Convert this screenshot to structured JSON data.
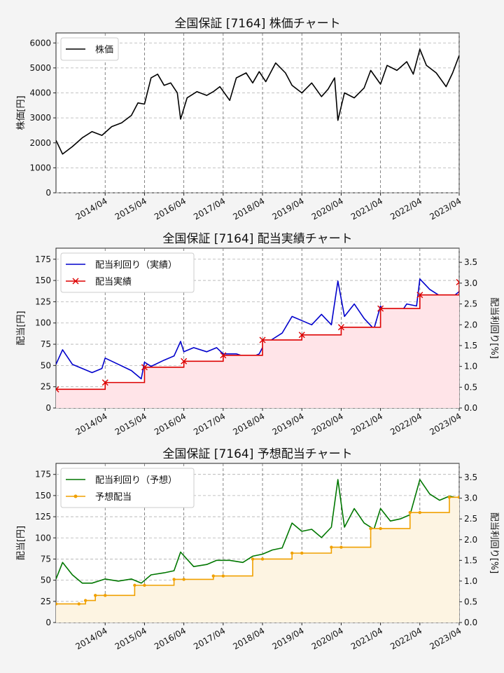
{
  "chart_data": [
    {
      "type": "line",
      "title": "全国保証 [7164]  株価チャート",
      "ylabel": "株価[円]",
      "ylim": [
        0,
        6400
      ],
      "yticks": [
        0,
        1000,
        2000,
        3000,
        4000,
        5000,
        6000
      ],
      "xlim": [
        "2013-01",
        "2023-04"
      ],
      "xticks": [
        "2014/04",
        "2015/04",
        "2016/04",
        "2017/04",
        "2018/04",
        "2019/04",
        "2020/04",
        "2021/04",
        "2022/04",
        "2023/04"
      ],
      "legend": {
        "position": "top-left",
        "entries": [
          "株価"
        ]
      },
      "grid": true,
      "series": [
        {
          "name": "株価",
          "color": "#000000",
          "x": [
            "2013-01",
            "2013-03",
            "2013-06",
            "2013-09",
            "2013-12",
            "2014-03",
            "2014-06",
            "2014-09",
            "2014-12",
            "2015-02",
            "2015-04",
            "2015-06",
            "2015-08",
            "2015-10",
            "2015-12",
            "2016-02",
            "2016-03",
            "2016-05",
            "2016-08",
            "2016-11",
            "2017-01",
            "2017-03",
            "2017-06",
            "2017-08",
            "2017-11",
            "2018-01",
            "2018-03",
            "2018-05",
            "2018-08",
            "2018-11",
            "2019-01",
            "2019-04",
            "2019-07",
            "2019-10",
            "2019-12",
            "2020-02",
            "2020-03",
            "2020-05",
            "2020-08",
            "2020-11",
            "2021-01",
            "2021-04",
            "2021-06",
            "2021-09",
            "2021-12",
            "2022-02",
            "2022-04",
            "2022-06",
            "2022-09",
            "2022-12",
            "2023-02",
            "2023-04"
          ],
          "y": [
            2100,
            1550,
            1850,
            2200,
            2450,
            2300,
            2650,
            2800,
            3100,
            3600,
            3550,
            4600,
            4750,
            4300,
            4400,
            4000,
            2950,
            3800,
            4050,
            3900,
            4050,
            4250,
            3700,
            4600,
            4800,
            4400,
            4850,
            4450,
            5200,
            4800,
            4300,
            4000,
            4400,
            3850,
            4150,
            4600,
            2900,
            4000,
            3800,
            4200,
            4900,
            4350,
            5100,
            4900,
            5250,
            4750,
            5750,
            5100,
            4800,
            4250,
            4800,
            5500
          ]
        }
      ]
    },
    {
      "type": "line",
      "title": "全国保証 [7164]  配当実績チャート",
      "ylabel": "配当[円]",
      "y2label": "配当利回り[%]",
      "ylim": [
        0,
        188
      ],
      "y2lim": [
        0,
        3.84
      ],
      "yticks": [
        0,
        25,
        50,
        75,
        100,
        125,
        150,
        175
      ],
      "y2ticks": [
        0.0,
        0.5,
        1.0,
        1.5,
        2.0,
        2.5,
        3.0,
        3.5
      ],
      "xlim": [
        "2013-01",
        "2023-04"
      ],
      "xticks": [
        "2014/04",
        "2015/04",
        "2016/04",
        "2017/04",
        "2018/04",
        "2019/04",
        "2020/04",
        "2021/04",
        "2022/04",
        "2023/04"
      ],
      "legend": {
        "position": "top-left",
        "entries": [
          "配当利回り（実績）",
          "配当実績"
        ]
      },
      "grid": true,
      "series": [
        {
          "name": "配当利回り（実績）",
          "axis": "right",
          "color": "#0000cc",
          "x": [
            "2013-01",
            "2013-03",
            "2013-06",
            "2013-09",
            "2013-12",
            "2014-03",
            "2014-04",
            "2014-08",
            "2014-12",
            "2015-03",
            "2015-04",
            "2015-06",
            "2015-10",
            "2016-01",
            "2016-03",
            "2016-04",
            "2016-07",
            "2016-11",
            "2017-02",
            "2017-04",
            "2017-08",
            "2017-12",
            "2018-03",
            "2018-04",
            "2018-06",
            "2018-10",
            "2019-01",
            "2019-04",
            "2019-07",
            "2019-10",
            "2020-01",
            "2020-03",
            "2020-05",
            "2020-08",
            "2020-11",
            "2021-02",
            "2021-04",
            "2021-06",
            "2021-09",
            "2021-12",
            "2022-03",
            "2022-04",
            "2022-07",
            "2022-10",
            "2023-01",
            "2023-04"
          ],
          "y": [
            1.05,
            1.4,
            1.05,
            0.95,
            0.85,
            0.95,
            1.2,
            1.05,
            0.9,
            0.7,
            1.1,
            1.0,
            1.15,
            1.25,
            1.6,
            1.35,
            1.45,
            1.35,
            1.45,
            1.3,
            1.3,
            1.2,
            1.3,
            1.45,
            1.6,
            1.8,
            2.2,
            2.1,
            2.0,
            2.25,
            2.0,
            3.05,
            2.2,
            2.5,
            2.15,
            1.9,
            2.45,
            2.2,
            2.15,
            2.5,
            2.45,
            3.1,
            2.85,
            2.7,
            2.6,
            2.8
          ]
        },
        {
          "name": "配当実績",
          "axis": "left",
          "color": "#dd0000",
          "marker": "x",
          "x": [
            "2013-01",
            "2014-04",
            "2015-04",
            "2016-04",
            "2017-04",
            "2018-04",
            "2019-04",
            "2020-04",
            "2021-04",
            "2022-04",
            "2023-04"
          ],
          "y": [
            22,
            30,
            48,
            55,
            62,
            80,
            86,
            95,
            117,
            133,
            148
          ]
        }
      ]
    },
    {
      "type": "line",
      "title": "全国保証 [7164]  予想配当チャート",
      "ylabel": "配当[円]",
      "y2label": "配当利回り[%]",
      "ylim": [
        0,
        188
      ],
      "y2lim": [
        0,
        3.84
      ],
      "yticks": [
        0,
        25,
        50,
        75,
        100,
        125,
        150,
        175
      ],
      "y2ticks": [
        0.0,
        0.5,
        1.0,
        1.5,
        2.0,
        2.5,
        3.0,
        3.5
      ],
      "xlim": [
        "2013-01",
        "2023-04"
      ],
      "xticks": [
        "2014/04",
        "2015/04",
        "2016/04",
        "2017/04",
        "2018/04",
        "2019/04",
        "2020/04",
        "2021/04",
        "2022/04",
        "2023/04"
      ],
      "legend": {
        "position": "top-left",
        "entries": [
          "配当利回り（予想）",
          "予想配当"
        ]
      },
      "grid": true,
      "series": [
        {
          "name": "配当利回り（予想）",
          "axis": "right",
          "color": "#007700",
          "x": [
            "2013-01",
            "2013-03",
            "2013-06",
            "2013-09",
            "2013-12",
            "2014-04",
            "2014-08",
            "2014-12",
            "2015-03",
            "2015-06",
            "2015-10",
            "2016-01",
            "2016-03",
            "2016-07",
            "2016-11",
            "2017-02",
            "2017-06",
            "2017-10",
            "2018-01",
            "2018-04",
            "2018-07",
            "2018-10",
            "2019-01",
            "2019-04",
            "2019-07",
            "2019-10",
            "2020-01",
            "2020-03",
            "2020-05",
            "2020-08",
            "2020-11",
            "2021-02",
            "2021-04",
            "2021-07",
            "2021-10",
            "2022-01",
            "2022-04",
            "2022-07",
            "2022-10",
            "2023-01",
            "2023-04"
          ],
          "y": [
            1.05,
            1.45,
            1.15,
            0.95,
            0.95,
            1.05,
            1.0,
            1.05,
            0.95,
            1.15,
            1.2,
            1.25,
            1.7,
            1.35,
            1.4,
            1.5,
            1.5,
            1.45,
            1.6,
            1.65,
            1.75,
            1.8,
            2.4,
            2.2,
            2.25,
            2.05,
            2.3,
            3.45,
            2.3,
            2.75,
            2.4,
            2.25,
            2.75,
            2.45,
            2.5,
            2.6,
            3.45,
            3.1,
            2.95,
            3.05,
            3.0
          ]
        },
        {
          "name": "予想配当",
          "axis": "left",
          "color": "#f0a000",
          "marker": "o",
          "x": [
            "2013-01",
            "2013-08",
            "2013-10",
            "2014-01",
            "2014-04",
            "2015-01",
            "2015-04",
            "2016-01",
            "2016-04",
            "2017-01",
            "2017-04",
            "2018-01",
            "2018-04",
            "2019-01",
            "2019-04",
            "2020-01",
            "2020-04",
            "2021-01",
            "2021-04",
            "2022-01",
            "2022-04",
            "2023-01",
            "2023-04"
          ],
          "y": [
            22,
            22,
            26,
            32,
            32,
            44,
            44,
            51,
            51,
            55,
            55,
            75,
            75,
            82,
            82,
            89,
            89,
            111,
            111,
            130,
            130,
            148,
            148
          ]
        }
      ]
    }
  ]
}
